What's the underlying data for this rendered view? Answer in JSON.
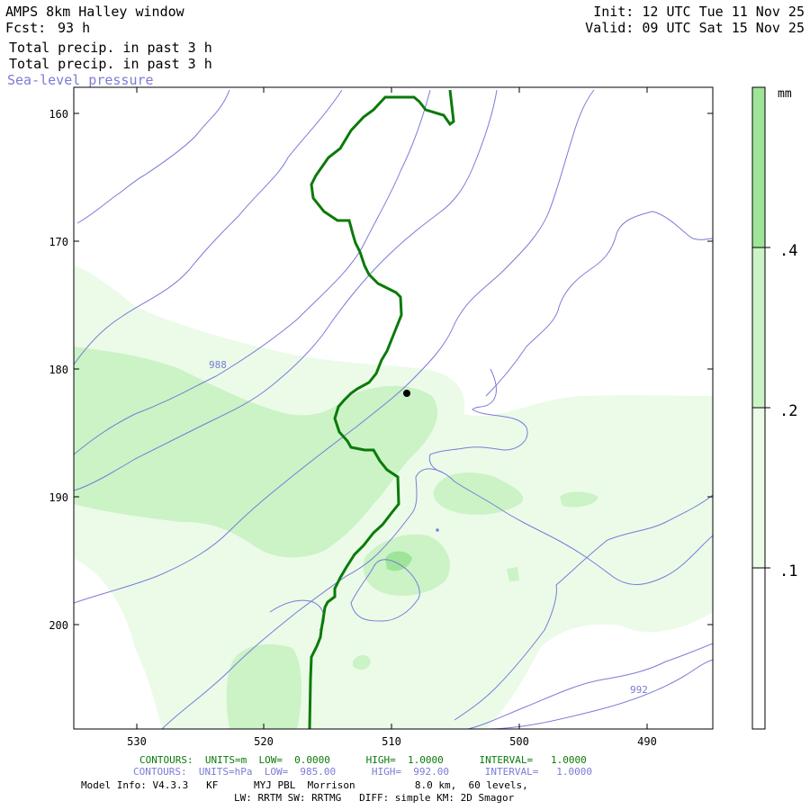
{
  "header": {
    "model_title": "AMPS 8km Halley window",
    "fcst_label": "Fcst:",
    "fcst_value": "93 h",
    "field_1": "Total precip. in past 3 h",
    "field_2": "Total precip. in past 3 h",
    "field_3": "Sea-level pressure",
    "init": "Init: 12 UTC Tue 11 Nov 25",
    "valid": "Valid: 09 UTC Sat 15 Nov 25"
  },
  "footer": {
    "contours_m": "CONTOURS:  UNITS=m  LOW=  0.0000      HIGH=  1.0000      INTERVAL=   1.0000",
    "contours_hpa": "CONTOURS:  UNITS=hPa  LOW=  985.00      HIGH=  992.00      INTERVAL=   1.0000",
    "model_info": "Model Info: V4.3.3   KF      MYJ PBL  Morrison          8.0 km,  60 levels,",
    "physics": "LW: RRTM SW: RRTMG   DIFF: simple KM: 2D Smagor"
  },
  "colors": {
    "precip_01": "#ebfbe8",
    "precip_02": "#cbf3c6",
    "precip_04": "#9ee599",
    "pressure_line": "#7b7bd8",
    "height_line": "#0a7a0a"
  },
  "chart_data": {
    "type": "contour",
    "x_ticks": [
      "530",
      "520",
      "510",
      "500",
      "490"
    ],
    "y_ticks": [
      "160",
      "170",
      "180",
      "190",
      "200"
    ],
    "colorbar": {
      "units": "mm",
      "levels": [
        ".1",
        ".2",
        ".4"
      ]
    },
    "pressure_contours": {
      "units": "hPa",
      "low": 985.0,
      "high": 992.0,
      "interval": 1.0,
      "labels": [
        "988",
        "992"
      ]
    },
    "height_contours": {
      "units": "m",
      "low": 0.0,
      "high": 1.0,
      "interval": 1.0
    }
  }
}
